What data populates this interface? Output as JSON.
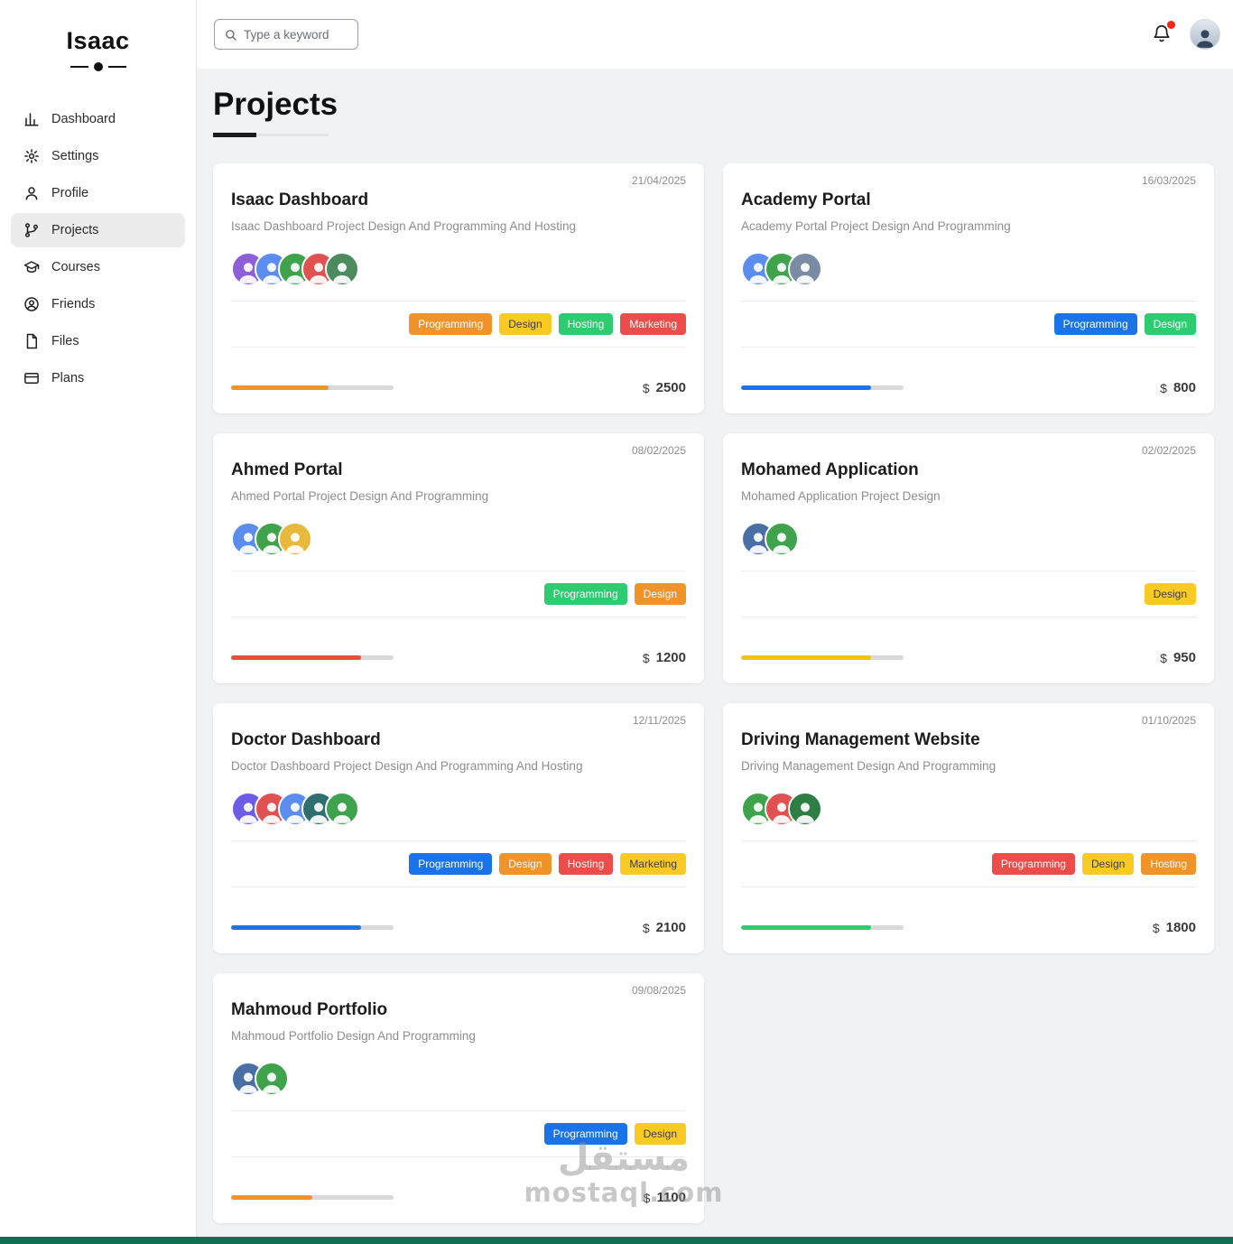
{
  "sidebar": {
    "logo": "Isaac",
    "items": [
      {
        "label": "Dashboard",
        "icon": "bar-chart-icon",
        "active": false
      },
      {
        "label": "Settings",
        "icon": "gear-icon",
        "active": false
      },
      {
        "label": "Profile",
        "icon": "user-icon",
        "active": false
      },
      {
        "label": "Projects",
        "icon": "git-branch-icon",
        "active": true
      },
      {
        "label": "Courses",
        "icon": "graduation-cap-icon",
        "active": false
      },
      {
        "label": "Friends",
        "icon": "friends-icon",
        "active": false
      },
      {
        "label": "Files",
        "icon": "file-icon",
        "active": false
      },
      {
        "label": "Plans",
        "icon": "credit-card-icon",
        "active": false
      }
    ]
  },
  "topbar": {
    "search_placeholder": "Type a keyword",
    "notification_dot_color": "#f2261b"
  },
  "page": {
    "title": "Projects"
  },
  "currency": "$",
  "projects": [
    {
      "name": "Isaac Dashboard",
      "date": "21/04/2025",
      "description": "Isaac Dashboard Project Design And Programming And Hosting",
      "avatar_colors": [
        "#8e5fd8",
        "#5b8def",
        "#3fa34d",
        "#e05252",
        "#4d8b5f"
      ],
      "tags": [
        {
          "label": "Programming",
          "color": "#f0932b",
          "text": "#ffffff"
        },
        {
          "label": "Design",
          "color": "#f9ca24",
          "text": "#3d3d3d"
        },
        {
          "label": "Hosting",
          "color": "#2ecc71",
          "text": "#ffffff"
        },
        {
          "label": "Marketing",
          "color": "#eb4d4b",
          "text": "#ffffff"
        }
      ],
      "progress": 60,
      "progress_color": "#f0932b",
      "price": "2500"
    },
    {
      "name": "Academy Portal",
      "date": "16/03/2025",
      "description": "Academy Portal Project Design And Programming",
      "avatar_colors": [
        "#5b8def",
        "#3fa34d",
        "#7a8ca3"
      ],
      "tags": [
        {
          "label": "Programming",
          "color": "#1a74e8",
          "text": "#ffffff"
        },
        {
          "label": "Design",
          "color": "#2ecc71",
          "text": "#ffffff"
        }
      ],
      "progress": 80,
      "progress_color": "#1a74e8",
      "price": "800"
    },
    {
      "name": "Ahmed Portal",
      "date": "08/02/2025",
      "description": "Ahmed Portal Project Design And Programming",
      "avatar_colors": [
        "#5b8def",
        "#3fa34d",
        "#e8b93a"
      ],
      "tags": [
        {
          "label": "Programming",
          "color": "#2ecc71",
          "text": "#ffffff"
        },
        {
          "label": "Design",
          "color": "#f0932b",
          "text": "#ffffff"
        }
      ],
      "progress": 80,
      "progress_color": "#e74c3c",
      "price": "1200"
    },
    {
      "name": "Mohamed Application",
      "date": "02/02/2025",
      "description": "Mohamed Application Project Design",
      "avatar_colors": [
        "#4a6fa5",
        "#3fa34d"
      ],
      "tags": [
        {
          "label": "Design",
          "color": "#f9ca24",
          "text": "#3d3d3d"
        }
      ],
      "progress": 80,
      "progress_color": "#f1c40f",
      "price": "950"
    },
    {
      "name": "Doctor Dashboard",
      "date": "12/11/2025",
      "description": "Doctor Dashboard Project Design And Programming And Hosting",
      "avatar_colors": [
        "#6c5ce7",
        "#e05252",
        "#5b8def",
        "#2f6f6f",
        "#3fa34d"
      ],
      "tags": [
        {
          "label": "Programming",
          "color": "#1a74e8",
          "text": "#ffffff"
        },
        {
          "label": "Design",
          "color": "#f0932b",
          "text": "#ffffff"
        },
        {
          "label": "Hosting",
          "color": "#eb4d4b",
          "text": "#ffffff"
        },
        {
          "label": "Marketing",
          "color": "#f9ca24",
          "text": "#3d3d3d"
        }
      ],
      "progress": 80,
      "progress_color": "#1a74e8",
      "price": "2100"
    },
    {
      "name": "Driving Management Website",
      "date": "01/10/2025",
      "description": "Driving Management Design And Programming",
      "avatar_colors": [
        "#3fa34d",
        "#e05252",
        "#2e7d43"
      ],
      "tags": [
        {
          "label": "Programming",
          "color": "#eb4d4b",
          "text": "#ffffff"
        },
        {
          "label": "Design",
          "color": "#f9ca24",
          "text": "#3d3d3d"
        },
        {
          "label": "Hosting",
          "color": "#f0932b",
          "text": "#ffffff"
        }
      ],
      "progress": 80,
      "progress_color": "#2ecc71",
      "price": "1800"
    },
    {
      "name": "Mahmoud Portfolio",
      "date": "09/08/2025",
      "description": "Mahmoud Portfolio Design And Programming",
      "avatar_colors": [
        "#4a6fa5",
        "#3fa34d"
      ],
      "tags": [
        {
          "label": "Programming",
          "color": "#1a74e8",
          "text": "#ffffff"
        },
        {
          "label": "Design",
          "color": "#f9ca24",
          "text": "#3d3d3d"
        }
      ],
      "progress": 50,
      "progress_color": "#f0932b",
      "price": "1100"
    }
  ],
  "watermark": {
    "arabic": "مستقل",
    "latin": "mostaql.com"
  },
  "footer_bar_color": "#156d52"
}
